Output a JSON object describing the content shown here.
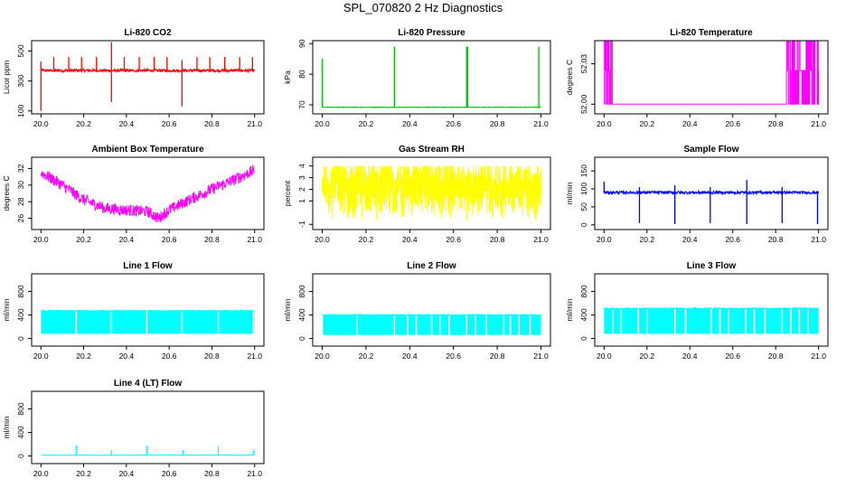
{
  "page": {
    "title": "SPL_070820  2 Hz Diagnostics"
  },
  "colors": {
    "co2": "#ff0000",
    "pressure": "#00bb00",
    "temperature": "#ff00ff",
    "box_temp": "#ff00ff",
    "rh": "#ffff00",
    "sample_flow": "#0000ee",
    "line_flow": "#00ffff"
  },
  "chart_data": [
    {
      "id": "co2",
      "type": "line",
      "title": "Li-820 CO2",
      "ylabel": "Licor ppm",
      "xlim": [
        20.0,
        21.0
      ],
      "ylim": [
        100,
        550
      ],
      "xticks": [
        20.0,
        20.2,
        20.4,
        20.6,
        20.8,
        21.0
      ],
      "xtick_labels": [
        "20.0",
        "20.2",
        "20.4",
        "20.6",
        "20.8",
        "21.0"
      ],
      "yticks": [
        100,
        300,
        500
      ],
      "ytick_labels": [
        "100",
        "300",
        "500"
      ],
      "color_key": "co2",
      "series": [
        {
          "name": "CO2",
          "baseline": 370,
          "noise": 10,
          "spikes": [
            [
              20.0,
              100
            ],
            [
              20.0,
              430
            ],
            [
              20.06,
              460
            ],
            [
              20.13,
              460
            ],
            [
              20.19,
              460
            ],
            [
              20.26,
              460
            ],
            [
              20.33,
              560
            ],
            [
              20.33,
              160
            ],
            [
              20.39,
              460
            ],
            [
              20.46,
              460
            ],
            [
              20.53,
              460
            ],
            [
              20.59,
              460
            ],
            [
              20.66,
              440
            ],
            [
              20.66,
              130
            ],
            [
              20.73,
              460
            ],
            [
              20.79,
              460
            ],
            [
              20.86,
              460
            ],
            [
              20.93,
              460
            ],
            [
              20.99,
              460
            ]
          ]
        }
      ]
    },
    {
      "id": "pressure",
      "type": "line",
      "title": "Li-820 Pressure",
      "ylabel": "kPa",
      "xlim": [
        20.0,
        21.0
      ],
      "ylim": [
        68,
        90
      ],
      "xticks": [
        20.0,
        20.2,
        20.4,
        20.6,
        20.8,
        21.0
      ],
      "xtick_labels": [
        "20.0",
        "20.2",
        "20.4",
        "20.6",
        "20.8",
        "21.0"
      ],
      "yticks": [
        70,
        80,
        90
      ],
      "ytick_labels": [
        "70",
        "80",
        "90"
      ],
      "color_key": "pressure",
      "series": [
        {
          "name": "Pressure",
          "baseline": 69.2,
          "noise": 0.1,
          "spikes": [
            [
              20.0,
              85
            ],
            [
              20.33,
              89
            ],
            [
              20.66,
              89
            ],
            [
              20.665,
              89
            ],
            [
              20.99,
              89
            ]
          ]
        }
      ]
    },
    {
      "id": "temperature",
      "type": "line",
      "title": "Li-820 Temperature",
      "ylabel": "degrees C",
      "xlim": [
        20.0,
        21.0
      ],
      "ylim": [
        51.995,
        52.045
      ],
      "xticks": [
        20.0,
        20.2,
        20.4,
        20.6,
        20.8,
        21.0
      ],
      "xtick_labels": [
        "20.0",
        "20.2",
        "20.4",
        "20.6",
        "20.8",
        "21.0"
      ],
      "yticks": [
        52.0,
        52.03
      ],
      "ytick_labels": [
        "52.00",
        "52.03"
      ],
      "color_key": "temperature",
      "series": [
        {
          "name": "Temperature",
          "baseline": 52.0,
          "noise": 0,
          "levels": [
            52.0,
            52.025,
            52.05
          ],
          "toggle_ranges": [
            [
              20.0,
              20.04
            ],
            [
              20.85,
              21.0
            ]
          ]
        }
      ]
    },
    {
      "id": "box_temp",
      "type": "line",
      "title": "Ambient Box Temperature",
      "ylabel": "degrees C",
      "xlim": [
        20.0,
        21.0
      ],
      "ylim": [
        25,
        33
      ],
      "xticks": [
        20.0,
        20.2,
        20.4,
        20.6,
        20.8,
        21.0
      ],
      "xtick_labels": [
        "20.0",
        "20.2",
        "20.4",
        "20.6",
        "20.8",
        "21.0"
      ],
      "yticks": [
        26,
        28,
        30,
        32
      ],
      "ytick_labels": [
        "26",
        "28",
        "30",
        "32"
      ],
      "color_key": "box_temp",
      "series": [
        {
          "name": "Box temperature",
          "noise": 0.7,
          "trend": [
            [
              20.0,
              31.5
            ],
            [
              20.1,
              30.0
            ],
            [
              20.2,
              28.2
            ],
            [
              20.3,
              27.2
            ],
            [
              20.4,
              27.0
            ],
            [
              20.5,
              26.8
            ],
            [
              20.55,
              26.0
            ],
            [
              20.6,
              27.0
            ],
            [
              20.7,
              28.3
            ],
            [
              20.8,
              29.5
            ],
            [
              20.9,
              30.6
            ],
            [
              21.0,
              31.8
            ]
          ]
        }
      ]
    },
    {
      "id": "rh",
      "type": "line",
      "title": "Gas Stream RH",
      "ylabel": "percent",
      "xlim": [
        20.0,
        21.0
      ],
      "ylim": [
        -1.2,
        4.5
      ],
      "xticks": [
        20.0,
        20.2,
        20.4,
        20.6,
        20.8,
        21.0
      ],
      "xtick_labels": [
        "20.0",
        "20.2",
        "20.4",
        "20.6",
        "20.8",
        "21.0"
      ],
      "yticks": [
        -1,
        1,
        2,
        3,
        4
      ],
      "ytick_labels": [
        "-1",
        "1",
        "2",
        "3",
        "4"
      ],
      "color_key": "rh",
      "series": [
        {
          "name": "RH",
          "baseline": 2.2,
          "noise": 3.0,
          "range": [
            -0.9,
            4.0
          ]
        }
      ]
    },
    {
      "id": "sample_flow",
      "type": "line",
      "title": "Sample Flow",
      "ylabel": "ml/min",
      "xlim": [
        20.0,
        21.0
      ],
      "ylim": [
        -5,
        180
      ],
      "xticks": [
        20.0,
        20.2,
        20.4,
        20.6,
        20.8,
        21.0
      ],
      "xtick_labels": [
        "20.0",
        "20.2",
        "20.4",
        "20.6",
        "20.8",
        "21.0"
      ],
      "yticks": [
        0,
        50,
        100,
        150
      ],
      "ytick_labels": [
        "0",
        "50",
        "100",
        "150"
      ],
      "color_key": "sample_flow",
      "series": [
        {
          "name": "Sample flow",
          "baseline": 90,
          "noise": 4,
          "spikes": [
            [
              20.0,
              120
            ],
            [
              20.165,
              105
            ],
            [
              20.165,
              5
            ],
            [
              20.33,
              110
            ],
            [
              20.33,
              2
            ],
            [
              20.495,
              105
            ],
            [
              20.495,
              5
            ],
            [
              20.665,
              125
            ],
            [
              20.665,
              2
            ],
            [
              20.83,
              105
            ],
            [
              20.83,
              5
            ],
            [
              20.995,
              2
            ]
          ]
        }
      ]
    },
    {
      "id": "line1",
      "type": "line",
      "title": "Line 1 Flow",
      "ylabel": "ml/min",
      "xlim": [
        20.0,
        21.0
      ],
      "ylim": [
        -80,
        1050
      ],
      "xticks": [
        20.0,
        20.2,
        20.4,
        20.6,
        20.8,
        21.0
      ],
      "xtick_labels": [
        "20.0",
        "20.2",
        "20.4",
        "20.6",
        "20.8",
        "21.0"
      ],
      "yticks": [
        0,
        400,
        800
      ],
      "ytick_labels": [
        "0",
        "400",
        "800"
      ],
      "color_key": "line_flow",
      "series": [
        {
          "name": "Line 1",
          "low": 80,
          "high": 470,
          "gaps": [
            20.165,
            20.33,
            20.495,
            20.66,
            20.83,
            20.995
          ]
        }
      ]
    },
    {
      "id": "line2",
      "type": "line",
      "title": "Line 2 Flow",
      "ylabel": "ml/min",
      "xlim": [
        20.0,
        21.0
      ],
      "ylim": [
        -80,
        1050
      ],
      "xticks": [
        20.0,
        20.2,
        20.4,
        20.6,
        20.8,
        21.0
      ],
      "xtick_labels": [
        "20.0",
        "20.2",
        "20.4",
        "20.6",
        "20.8",
        "21.0"
      ],
      "yticks": [
        0,
        400,
        800
      ],
      "ytick_labels": [
        "0",
        "400",
        "800"
      ],
      "color_key": "line_flow",
      "series": [
        {
          "name": "Line 2",
          "low": 60,
          "high": 400,
          "gaps": [
            20.0,
            20.16,
            20.33,
            20.39,
            20.43,
            20.5,
            20.54,
            20.58,
            20.66,
            20.7,
            20.75,
            20.83,
            20.86,
            20.9,
            20.95
          ]
        }
      ]
    },
    {
      "id": "line3",
      "type": "line",
      "title": "Line 3 Flow",
      "ylabel": "ml/min",
      "xlim": [
        20.0,
        21.0
      ],
      "ylim": [
        -80,
        1050
      ],
      "xticks": [
        20.0,
        20.2,
        20.4,
        20.6,
        20.8,
        21.0
      ],
      "xtick_labels": [
        "20.0",
        "20.2",
        "20.4",
        "20.6",
        "20.8",
        "21.0"
      ],
      "yticks": [
        0,
        400,
        800
      ],
      "ytick_labels": [
        "0",
        "400",
        "800"
      ],
      "color_key": "line_flow",
      "series": [
        {
          "name": "Line 3",
          "low": 80,
          "high": 510,
          "gaps": [
            20.04,
            20.08,
            20.16,
            20.2,
            20.33,
            20.38,
            20.5,
            20.54,
            20.58,
            20.66,
            20.7,
            20.75,
            20.83,
            20.87,
            20.91,
            20.95
          ]
        }
      ]
    },
    {
      "id": "line4",
      "type": "line",
      "title": "Line 4 (LT) Flow",
      "ylabel": "ml/min",
      "xlim": [
        20.0,
        21.0
      ],
      "ylim": [
        -80,
        1050
      ],
      "xticks": [
        20.0,
        20.2,
        20.4,
        20.6,
        20.8,
        21.0
      ],
      "xtick_labels": [
        "20.0",
        "20.2",
        "20.4",
        "20.6",
        "20.8",
        "21.0"
      ],
      "yticks": [
        0,
        400,
        800
      ],
      "ytick_labels": [
        "0",
        "400",
        "800"
      ],
      "color_key": "line_flow",
      "series": [
        {
          "name": "Line 4",
          "baseline": 15,
          "noise": 3,
          "spikes": [
            [
              20.165,
              180
            ],
            [
              20.33,
              100
            ],
            [
              20.495,
              170
            ],
            [
              20.665,
              100
            ],
            [
              20.83,
              170
            ],
            [
              20.995,
              100
            ]
          ]
        }
      ]
    }
  ]
}
